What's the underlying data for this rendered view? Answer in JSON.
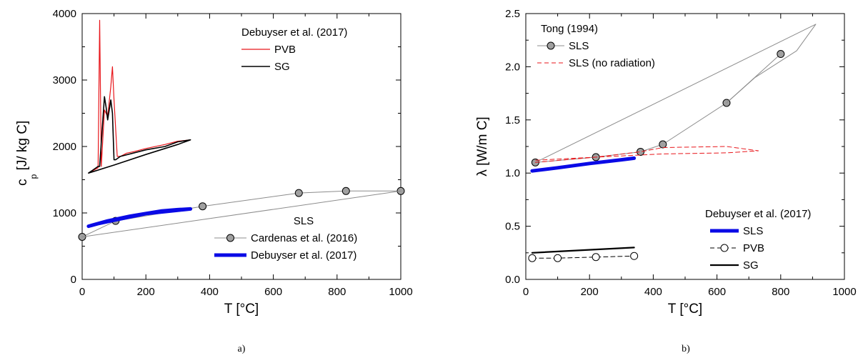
{
  "chart_data": [
    {
      "type": "line",
      "panel_label": "a)",
      "xlabel": "T  [°C]",
      "ylabel_main": "c",
      "ylabel_sub": "p",
      "ylabel_unit": "[J/ kg C]",
      "xlim": [
        0,
        1000
      ],
      "ylim": [
        0,
        4000
      ],
      "xticks": [
        0,
        200,
        400,
        600,
        800,
        1000
      ],
      "yticks": [
        0,
        1000,
        2000,
        3000,
        4000
      ],
      "grid": false,
      "legend_groups": [
        {
          "title": "Debuyser et al. (2017)",
          "location": "top-right",
          "entries": [
            "pvb",
            "sg"
          ]
        },
        {
          "title": "SLS",
          "location": "bottom-right",
          "entries": [
            "cardenas",
            "debuyser_sls"
          ]
        }
      ],
      "series": [
        {
          "id": "pvb",
          "name": "PVB",
          "color": "#e8161b",
          "line_width": 1.2,
          "marker": "none",
          "x": [
            20,
            50,
            55,
            60,
            70,
            80,
            90,
            95,
            100,
            110,
            120,
            140,
            160,
            200,
            260,
            300,
            340
          ],
          "y": [
            1600,
            1680,
            3900,
            1700,
            2550,
            2450,
            2900,
            3200,
            2700,
            1850,
            1850,
            1900,
            1920,
            1970,
            2030,
            2080,
            2100
          ]
        },
        {
          "id": "sg",
          "name": "SG",
          "color": "#000000",
          "line_width": 1.6,
          "marker": "none",
          "x": [
            20,
            50,
            55,
            70,
            75,
            80,
            85,
            90,
            95,
            100,
            105,
            120,
            200,
            260,
            300,
            340,
            300,
            200,
            100,
            20
          ],
          "y": [
            1600,
            1700,
            1700,
            2750,
            2600,
            2400,
            2550,
            2700,
            2500,
            1800,
            1800,
            1850,
            1950,
            2000,
            2070,
            2100,
            2030,
            1880,
            1720,
            1600
          ]
        },
        {
          "id": "cardenas",
          "name": "Cardenas et al. (2016)",
          "color": "#8c8c8c",
          "line_width": 1,
          "marker": "circle",
          "marker_fill": "#a0a0a0",
          "x": [
            0,
            105,
            378,
            680,
            828,
            1000
          ],
          "y": [
            640,
            880,
            1100,
            1300,
            1330,
            1330
          ]
        },
        {
          "id": "cardenas_envelope",
          "name": "",
          "color": "#8c8c8c",
          "line_width": 1,
          "marker": "none",
          "x": [
            0,
            1000
          ],
          "y": [
            640,
            1330
          ]
        },
        {
          "id": "debuyser_sls",
          "name": "Debuyser et al. (2017)",
          "color": "#0a0ae6",
          "line_width": 5,
          "marker": "none",
          "x": [
            20,
            80,
            150,
            200,
            260,
            300,
            340,
            300,
            250,
            200,
            150,
            100,
            50,
            20
          ],
          "y": [
            800,
            880,
            950,
            990,
            1020,
            1040,
            1060,
            1050,
            1030,
            990,
            940,
            890,
            840,
            800
          ]
        }
      ]
    },
    {
      "type": "line",
      "panel_label": "b)",
      "xlabel": "T  [°C]",
      "ylabel_main": "λ  [W/m C]",
      "xlim": [
        0,
        1000
      ],
      "ylim": [
        0,
        2.5
      ],
      "xticks": [
        0,
        200,
        400,
        600,
        800,
        1000
      ],
      "yticks": [
        0.0,
        0.5,
        1.0,
        1.5,
        2.0,
        2.5
      ],
      "ytick_labels": [
        "0.0",
        "0.5",
        "1.0",
        "1.5",
        "2.0",
        "2.5"
      ],
      "grid": false,
      "legend_groups": [
        {
          "title": "Tong (1994)",
          "location": "top-left",
          "entries": [
            "tong_sls",
            "tong_norad"
          ]
        },
        {
          "title": "Debuyser et al. (2017)",
          "location": "bottom-right",
          "entries": [
            "deb_sls",
            "deb_pvb",
            "deb_sg"
          ]
        }
      ],
      "series": [
        {
          "id": "tong_sls",
          "name": "SLS",
          "color": "#8c8c8c",
          "line_width": 1,
          "marker": "circle",
          "marker_fill": "#a0a0a0",
          "x": [
            30,
            220,
            360,
            430,
            630,
            800
          ],
          "y": [
            1.1,
            1.15,
            1.2,
            1.27,
            1.66,
            2.12
          ]
        },
        {
          "id": "tong_sls_envelope",
          "name": "",
          "color": "#8c8c8c",
          "line_width": 1,
          "marker": "none",
          "x": [
            30,
            910,
            850,
            720,
            630
          ],
          "y": [
            1.1,
            2.4,
            2.15,
            1.9,
            1.66
          ]
        },
        {
          "id": "tong_norad",
          "name": "SLS (no radiation)",
          "color": "#e8161b",
          "line_width": 1,
          "dashed": true,
          "marker": "none",
          "x": [
            30,
            220,
            360,
            430,
            630,
            730,
            630,
            430,
            220,
            30
          ],
          "y": [
            1.1,
            1.15,
            1.2,
            1.24,
            1.25,
            1.21,
            1.19,
            1.18,
            1.15,
            1.12
          ]
        },
        {
          "id": "deb_sls",
          "name": "SLS",
          "color": "#0a0ae6",
          "line_width": 5,
          "marker": "none",
          "x": [
            20,
            100,
            200,
            300,
            340
          ],
          "y": [
            1.02,
            1.05,
            1.09,
            1.125,
            1.14
          ]
        },
        {
          "id": "deb_pvb",
          "name": "PVB",
          "color": "#000000",
          "line_width": 1,
          "dashed": true,
          "marker": "circle",
          "marker_fill": "#ffffff",
          "x": [
            20,
            100,
            220,
            340
          ],
          "y": [
            0.2,
            0.2,
            0.21,
            0.22
          ]
        },
        {
          "id": "deb_sg",
          "name": "SG",
          "color": "#000000",
          "line_width": 2.2,
          "marker": "none",
          "x": [
            20,
            340
          ],
          "y": [
            0.25,
            0.3
          ]
        }
      ]
    }
  ]
}
